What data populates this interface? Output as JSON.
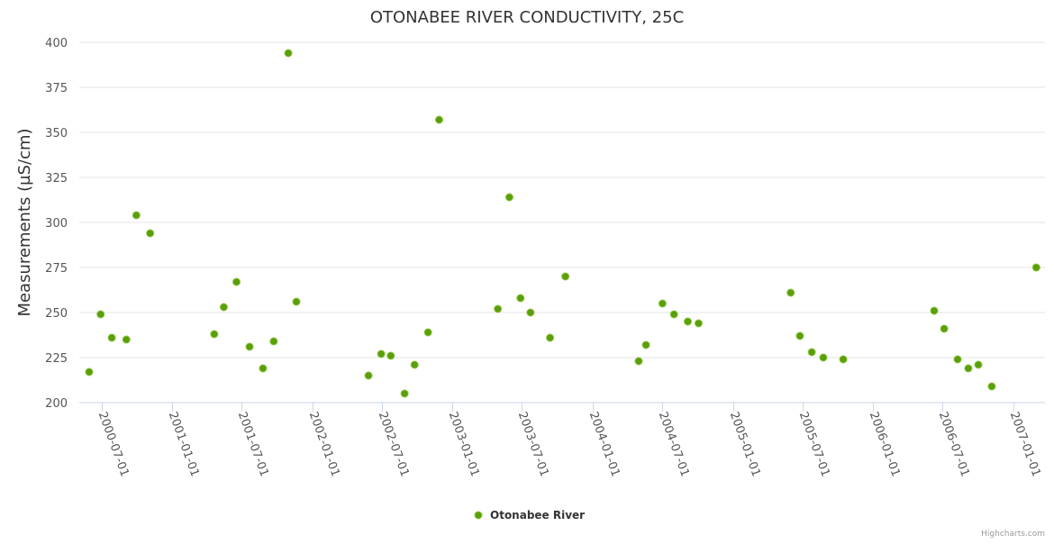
{
  "chart_data": {
    "type": "scatter",
    "title": "OTONABEE RIVER CONDUCTIVITY, 25C",
    "xlabel": "",
    "ylabel": "Measurements (µS/cm)",
    "ylim": [
      200,
      400
    ],
    "yticks": [
      200,
      225,
      250,
      275,
      300,
      325,
      350,
      375,
      400
    ],
    "xticks": [
      "2000-07-01",
      "2001-01-01",
      "2001-07-01",
      "2002-01-01",
      "2002-07-01",
      "2003-01-01",
      "2003-07-01",
      "2004-01-01",
      "2004-07-01",
      "2005-01-01",
      "2005-07-01",
      "2006-01-01",
      "2006-07-01",
      "2007-01-01"
    ],
    "grid": true,
    "legend_position": "bottom-center",
    "credits": "Highcharts.com",
    "series": [
      {
        "name": "Otonabee River",
        "color": "#5a9e0a",
        "points": [
          [
            "2000-05-29",
            217
          ],
          [
            "2000-06-28",
            249
          ],
          [
            "2000-07-27",
            236
          ],
          [
            "2000-09-03",
            235
          ],
          [
            "2000-09-29",
            304
          ],
          [
            "2000-11-04",
            294
          ],
          [
            "2001-04-20",
            238
          ],
          [
            "2001-05-15",
            253
          ],
          [
            "2001-06-17",
            267
          ],
          [
            "2001-07-21",
            231
          ],
          [
            "2001-08-25",
            219
          ],
          [
            "2001-09-22",
            234
          ],
          [
            "2001-10-30",
            394
          ],
          [
            "2001-11-20",
            256
          ],
          [
            "2002-05-27",
            215
          ],
          [
            "2002-06-29",
            227
          ],
          [
            "2002-07-24",
            226
          ],
          [
            "2002-08-29",
            205
          ],
          [
            "2002-09-24",
            221
          ],
          [
            "2002-10-29",
            239
          ],
          [
            "2002-11-27",
            357
          ],
          [
            "2003-04-29",
            252
          ],
          [
            "2003-05-29",
            314
          ],
          [
            "2003-06-27",
            258
          ],
          [
            "2003-07-23",
            250
          ],
          [
            "2003-09-12",
            236
          ],
          [
            "2003-10-22",
            270
          ],
          [
            "2004-04-30",
            223
          ],
          [
            "2004-05-19",
            232
          ],
          [
            "2004-07-01",
            255
          ],
          [
            "2004-07-31",
            249
          ],
          [
            "2004-09-05",
            245
          ],
          [
            "2004-10-03",
            244
          ],
          [
            "2005-05-31",
            261
          ],
          [
            "2005-06-24",
            237
          ],
          [
            "2005-07-25",
            228
          ],
          [
            "2005-08-24",
            225
          ],
          [
            "2005-10-15",
            224
          ],
          [
            "2006-06-09",
            251
          ],
          [
            "2006-07-05",
            241
          ],
          [
            "2006-08-09",
            224
          ],
          [
            "2006-09-06",
            219
          ],
          [
            "2006-10-02",
            221
          ],
          [
            "2006-11-06",
            209
          ],
          [
            "2007-03-02",
            275
          ]
        ]
      }
    ]
  }
}
